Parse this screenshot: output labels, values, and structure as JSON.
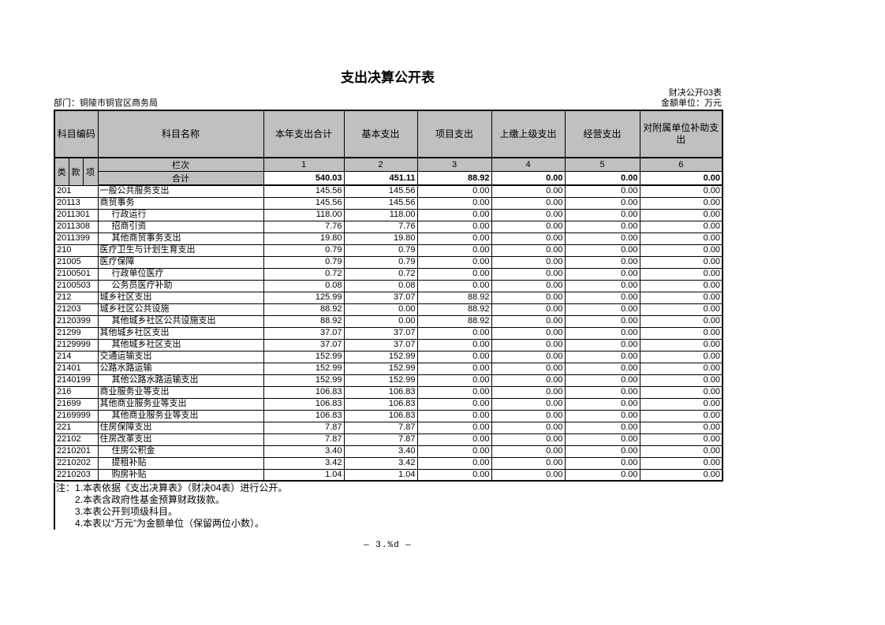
{
  "page": {
    "title": "支出决算公开表",
    "meta_left": "部门：铜陵市铜官区商务局",
    "meta_right_line1": "财决公开03表",
    "meta_right_line2": "金额单位：万元",
    "footer_page_text": "— 3.%d —"
  },
  "colors": {
    "header_bg": "#c0c0c0",
    "border": "#000000"
  },
  "table": {
    "headers": {
      "code": "科目编码",
      "name": "科目名称",
      "cols": [
        "本年支出合计",
        "基本支出",
        "项目支出",
        "上缴上级支出",
        "经营支出",
        "对附属单位补助支出"
      ]
    },
    "sub_header": {
      "code_parts": [
        "类",
        "款",
        "项"
      ],
      "lanci_label": "栏次",
      "column_numbers": [
        "1",
        "2",
        "3",
        "4",
        "5",
        "6"
      ]
    },
    "total_row": {
      "label": "合计",
      "values": [
        "540.03",
        "451.11",
        "88.92",
        "0.00",
        "0.00",
        "0.00"
      ]
    },
    "rows": [
      {
        "code": "201",
        "name": "一般公共服务支出",
        "indent": 0,
        "values": [
          "145.56",
          "145.56",
          "0.00",
          "0.00",
          "0.00",
          "0.00"
        ]
      },
      {
        "code": "20113",
        "name": "商贸事务",
        "indent": 0,
        "values": [
          "145.56",
          "145.56",
          "0.00",
          "0.00",
          "0.00",
          "0.00"
        ]
      },
      {
        "code": "2011301",
        "name": "行政运行",
        "indent": 1,
        "values": [
          "118.00",
          "118.00",
          "0.00",
          "0.00",
          "0.00",
          "0.00"
        ]
      },
      {
        "code": "2011308",
        "name": "招商引资",
        "indent": 1,
        "values": [
          "7.76",
          "7.76",
          "0.00",
          "0.00",
          "0.00",
          "0.00"
        ]
      },
      {
        "code": "2011399",
        "name": "其他商贸事务支出",
        "indent": 1,
        "values": [
          "19.80",
          "19.80",
          "0.00",
          "0.00",
          "0.00",
          "0.00"
        ]
      },
      {
        "code": "210",
        "name": "医疗卫生与计划生育支出",
        "indent": 0,
        "values": [
          "0.79",
          "0.79",
          "0.00",
          "0.00",
          "0.00",
          "0.00"
        ]
      },
      {
        "code": "21005",
        "name": "医疗保障",
        "indent": 0,
        "values": [
          "0.79",
          "0.79",
          "0.00",
          "0.00",
          "0.00",
          "0.00"
        ]
      },
      {
        "code": "2100501",
        "name": "行政单位医疗",
        "indent": 1,
        "values": [
          "0.72",
          "0.72",
          "0.00",
          "0.00",
          "0.00",
          "0.00"
        ]
      },
      {
        "code": "2100503",
        "name": "公务员医疗补助",
        "indent": 1,
        "values": [
          "0.08",
          "0.08",
          "0.00",
          "0.00",
          "0.00",
          "0.00"
        ]
      },
      {
        "code": "212",
        "name": "城乡社区支出",
        "indent": 0,
        "values": [
          "125.99",
          "37.07",
          "88.92",
          "0.00",
          "0.00",
          "0.00"
        ]
      },
      {
        "code": "21203",
        "name": "城乡社区公共设施",
        "indent": 0,
        "values": [
          "88.92",
          "0.00",
          "88.92",
          "0.00",
          "0.00",
          "0.00"
        ]
      },
      {
        "code": "2120399",
        "name": "其他城乡社区公共设施支出",
        "indent": 1,
        "values": [
          "88.92",
          "0.00",
          "88.92",
          "0.00",
          "0.00",
          "0.00"
        ]
      },
      {
        "code": "21299",
        "name": "其他城乡社区支出",
        "indent": 0,
        "values": [
          "37.07",
          "37.07",
          "0.00",
          "0.00",
          "0.00",
          "0.00"
        ]
      },
      {
        "code": "2129999",
        "name": "其他城乡社区支出",
        "indent": 1,
        "values": [
          "37.07",
          "37.07",
          "0.00",
          "0.00",
          "0.00",
          "0.00"
        ]
      },
      {
        "code": "214",
        "name": "交通运输支出",
        "indent": 0,
        "values": [
          "152.99",
          "152.99",
          "0.00",
          "0.00",
          "0.00",
          "0.00"
        ]
      },
      {
        "code": "21401",
        "name": "公路水路运输",
        "indent": 0,
        "values": [
          "152.99",
          "152.99",
          "0.00",
          "0.00",
          "0.00",
          "0.00"
        ]
      },
      {
        "code": "2140199",
        "name": "其他公路水路运输支出",
        "indent": 1,
        "values": [
          "152.99",
          "152.99",
          "0.00",
          "0.00",
          "0.00",
          "0.00"
        ]
      },
      {
        "code": "216",
        "name": "商业服务业等支出",
        "indent": 0,
        "values": [
          "106.83",
          "106.83",
          "0.00",
          "0.00",
          "0.00",
          "0.00"
        ]
      },
      {
        "code": "21699",
        "name": "其他商业服务业等支出",
        "indent": 0,
        "values": [
          "106.83",
          "106.83",
          "0.00",
          "0.00",
          "0.00",
          "0.00"
        ]
      },
      {
        "code": "2169999",
        "name": "其他商业服务业等支出",
        "indent": 1,
        "values": [
          "106.83",
          "106.83",
          "0.00",
          "0.00",
          "0.00",
          "0.00"
        ]
      },
      {
        "code": "221",
        "name": "住房保障支出",
        "indent": 0,
        "values": [
          "7.87",
          "7.87",
          "0.00",
          "0.00",
          "0.00",
          "0.00"
        ]
      },
      {
        "code": "22102",
        "name": "住房改革支出",
        "indent": 0,
        "values": [
          "7.87",
          "7.87",
          "0.00",
          "0.00",
          "0.00",
          "0.00"
        ]
      },
      {
        "code": "2210201",
        "name": "住房公积金",
        "indent": 1,
        "values": [
          "3.40",
          "3.40",
          "0.00",
          "0.00",
          "0.00",
          "0.00"
        ]
      },
      {
        "code": "2210202",
        "name": "提租补贴",
        "indent": 1,
        "values": [
          "3.42",
          "3.42",
          "0.00",
          "0.00",
          "0.00",
          "0.00"
        ]
      },
      {
        "code": "2210203",
        "name": "购房补贴",
        "indent": 1,
        "values": [
          "1.04",
          "1.04",
          "0.00",
          "0.00",
          "0.00",
          "0.00"
        ]
      }
    ]
  },
  "notes": {
    "label": "注：",
    "lines": [
      "1.本表依据《支出决算表》（财决04表）进行公开。",
      "2.本表含政府性基金预算财政拨款。",
      "3.本表公开到项级科目。",
      "4.本表以“万元”为金额单位（保留两位小数）。"
    ]
  }
}
